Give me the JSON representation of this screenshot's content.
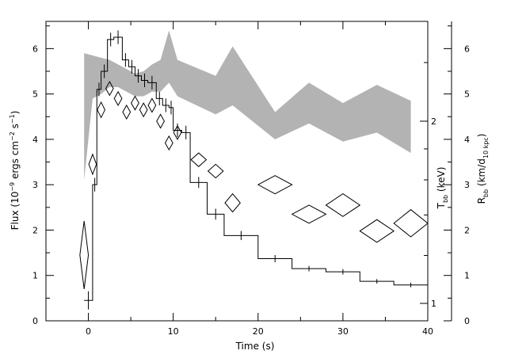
{
  "chart_data": {
    "type": "line",
    "xlabel": "Time (s)",
    "ylabel_left": {
      "main": "Flux (10",
      "sup1": "−9",
      "mid": " ergs cm",
      "sup2": "−2",
      "mid2": " s",
      "sup3": "−1",
      "end": ")"
    },
    "ylabel_t": {
      "main": "T",
      "sub": "bb",
      "end": " (keV)"
    },
    "ylabel_r": {
      "main": "R",
      "sub": "bb",
      "mid": " (km/d",
      "sub2": "10 kpc",
      "end": ")"
    },
    "xlim": [
      -5,
      40
    ],
    "ylim": [
      0,
      6.6
    ],
    "xticks": [
      "0",
      "10",
      "20",
      "30",
      "40"
    ],
    "yticks_left": [
      "0",
      "1",
      "2",
      "3",
      "4",
      "5",
      "6"
    ],
    "yticks_t": [
      "1",
      "2"
    ],
    "yticks_r": [
      "0",
      "1",
      "2",
      "3",
      "4",
      "5",
      "6"
    ],
    "flux_steps": [
      {
        "x0": -0.5,
        "x1": 0.5,
        "y": 0.45,
        "err": 0.2
      },
      {
        "x0": 0.5,
        "x1": 1.0,
        "y": 3.0,
        "err": 0.15
      },
      {
        "x0": 1.0,
        "x1": 1.5,
        "y": 5.1,
        "err": 0.15
      },
      {
        "x0": 1.5,
        "x1": 2.25,
        "y": 5.5,
        "err": 0.15
      },
      {
        "x0": 2.25,
        "x1": 3.0,
        "y": 6.2,
        "err": 0.15
      },
      {
        "x0": 3.0,
        "x1": 4.0,
        "y": 6.25,
        "err": 0.15
      },
      {
        "x0": 4.0,
        "x1": 4.75,
        "y": 5.75,
        "err": 0.15
      },
      {
        "x0": 4.75,
        "x1": 5.5,
        "y": 5.6,
        "err": 0.15
      },
      {
        "x0": 5.5,
        "x1": 6.25,
        "y": 5.4,
        "err": 0.15
      },
      {
        "x0": 6.25,
        "x1": 7.0,
        "y": 5.3,
        "err": 0.15
      },
      {
        "x0": 7.0,
        "x1": 8.0,
        "y": 5.25,
        "err": 0.15
      },
      {
        "x0": 8.0,
        "x1": 8.75,
        "y": 4.9,
        "err": 0.15
      },
      {
        "x0": 8.75,
        "x1": 9.5,
        "y": 4.75,
        "err": 0.15
      },
      {
        "x0": 9.5,
        "x1": 10.0,
        "y": 4.7,
        "err": 0.15
      },
      {
        "x0": 10.0,
        "x1": 11.0,
        "y": 4.2,
        "err": 0.15
      },
      {
        "x0": 11.0,
        "x1": 12.0,
        "y": 4.15,
        "err": 0.15
      },
      {
        "x0": 12.0,
        "x1": 14.0,
        "y": 3.05,
        "err": 0.12
      },
      {
        "x0": 14.0,
        "x1": 16.0,
        "y": 2.35,
        "err": 0.12
      },
      {
        "x0": 16.0,
        "x1": 20.0,
        "y": 1.88,
        "err": 0.1
      },
      {
        "x0": 20.0,
        "x1": 24.0,
        "y": 1.37,
        "err": 0.08
      },
      {
        "x0": 24.0,
        "x1": 28.0,
        "y": 1.15,
        "err": 0.06
      },
      {
        "x0": 28.0,
        "x1": 32.0,
        "y": 1.08,
        "err": 0.06
      },
      {
        "x0": 32.0,
        "x1": 36.0,
        "y": 0.87,
        "err": 0.05
      },
      {
        "x0": 36.0,
        "x1": 40.0,
        "y": 0.79,
        "err": 0.05
      }
    ],
    "temperature_band": {
      "x": [
        -0.5,
        0.5,
        1.5,
        2.5,
        3.5,
        4.5,
        5.5,
        6.5,
        7.5,
        8.5,
        9.5,
        10.5,
        15.0,
        17.0,
        22.0,
        26.0,
        30.0,
        34.0,
        38.0
      ],
      "upper": [
        5.9,
        5.85,
        5.8,
        5.75,
        5.65,
        5.55,
        5.45,
        5.5,
        5.65,
        5.75,
        6.4,
        5.75,
        5.4,
        6.05,
        4.6,
        5.25,
        4.8,
        5.2,
        4.85
      ],
      "lower": [
        3.1,
        4.9,
        5.0,
        5.15,
        5.15,
        5.05,
        4.95,
        4.95,
        5.05,
        5.05,
        5.25,
        4.95,
        4.55,
        4.75,
        4.0,
        4.35,
        3.95,
        4.15,
        3.7
      ]
    },
    "radius_points": [
      {
        "x": -0.5,
        "y": 1.45,
        "xerr": 0.5,
        "yerr": 0.75
      },
      {
        "x": 0.5,
        "y": 3.45,
        "xerr": 0.45,
        "yerr": 0.22
      },
      {
        "x": 1.5,
        "y": 4.65,
        "xerr": 0.45,
        "yerr": 0.17
      },
      {
        "x": 2.5,
        "y": 5.12,
        "xerr": 0.45,
        "yerr": 0.15
      },
      {
        "x": 3.5,
        "y": 4.9,
        "xerr": 0.45,
        "yerr": 0.15
      },
      {
        "x": 4.5,
        "y": 4.6,
        "xerr": 0.45,
        "yerr": 0.15
      },
      {
        "x": 5.5,
        "y": 4.8,
        "xerr": 0.45,
        "yerr": 0.15
      },
      {
        "x": 6.5,
        "y": 4.65,
        "xerr": 0.45,
        "yerr": 0.15
      },
      {
        "x": 7.5,
        "y": 4.75,
        "xerr": 0.45,
        "yerr": 0.15
      },
      {
        "x": 8.5,
        "y": 4.4,
        "xerr": 0.45,
        "yerr": 0.15
      },
      {
        "x": 9.5,
        "y": 3.92,
        "xerr": 0.45,
        "yerr": 0.15
      },
      {
        "x": 10.5,
        "y": 4.15,
        "xerr": 0.45,
        "yerr": 0.15
      },
      {
        "x": 13.0,
        "y": 3.55,
        "xerr": 0.9,
        "yerr": 0.15
      },
      {
        "x": 15.0,
        "y": 3.3,
        "xerr": 0.9,
        "yerr": 0.15
      },
      {
        "x": 17.0,
        "y": 2.6,
        "xerr": 0.9,
        "yerr": 0.2
      },
      {
        "x": 22.0,
        "y": 3.0,
        "xerr": 2.0,
        "yerr": 0.2
      },
      {
        "x": 26.0,
        "y": 2.35,
        "xerr": 2.0,
        "yerr": 0.2
      },
      {
        "x": 30.0,
        "y": 2.55,
        "xerr": 2.0,
        "yerr": 0.25
      },
      {
        "x": 34.0,
        "y": 1.98,
        "xerr": 2.0,
        "yerr": 0.25
      },
      {
        "x": 38.0,
        "y": 2.15,
        "xerr": 2.0,
        "yerr": 0.3
      }
    ],
    "colors": {
      "band": "#b3b3b3",
      "line": "#000000"
    }
  }
}
